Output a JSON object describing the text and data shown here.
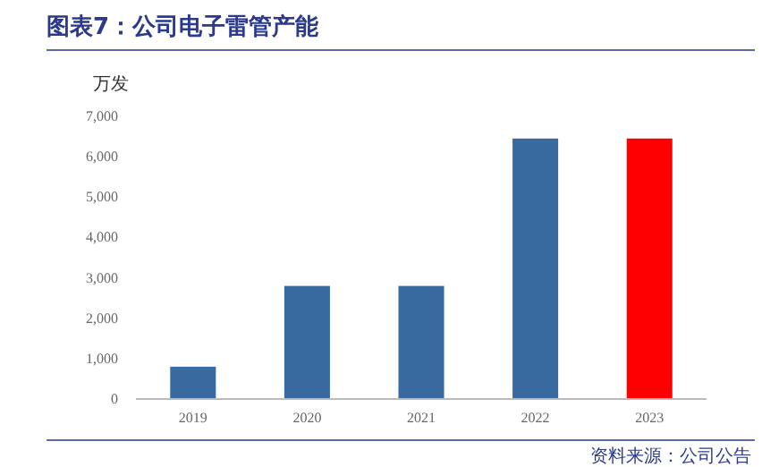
{
  "chart_data": {
    "type": "bar",
    "title": "图表7：公司电子雷管产能",
    "ylabel": "万发",
    "categories": [
      "2019",
      "2020",
      "2021",
      "2022",
      "2023"
    ],
    "values": [
      800,
      2800,
      2800,
      6450,
      6450
    ],
    "colors": [
      "#386a9f",
      "#386a9f",
      "#386a9f",
      "#386a9f",
      "#ff0000"
    ],
    "ylim": [
      0,
      7000
    ],
    "yticks": [
      {
        "value": 0,
        "label": "0"
      },
      {
        "value": 1000,
        "label": "1,000"
      },
      {
        "value": 2000,
        "label": "2,000"
      },
      {
        "value": 3000,
        "label": "3,000"
      },
      {
        "value": 4000,
        "label": "4,000"
      },
      {
        "value": 5000,
        "label": "5,000"
      },
      {
        "value": 6000,
        "label": "6,000"
      },
      {
        "value": 7000,
        "label": "7,000"
      }
    ],
    "grid": false,
    "annotations": [
      "资料来源：公司公告"
    ]
  }
}
